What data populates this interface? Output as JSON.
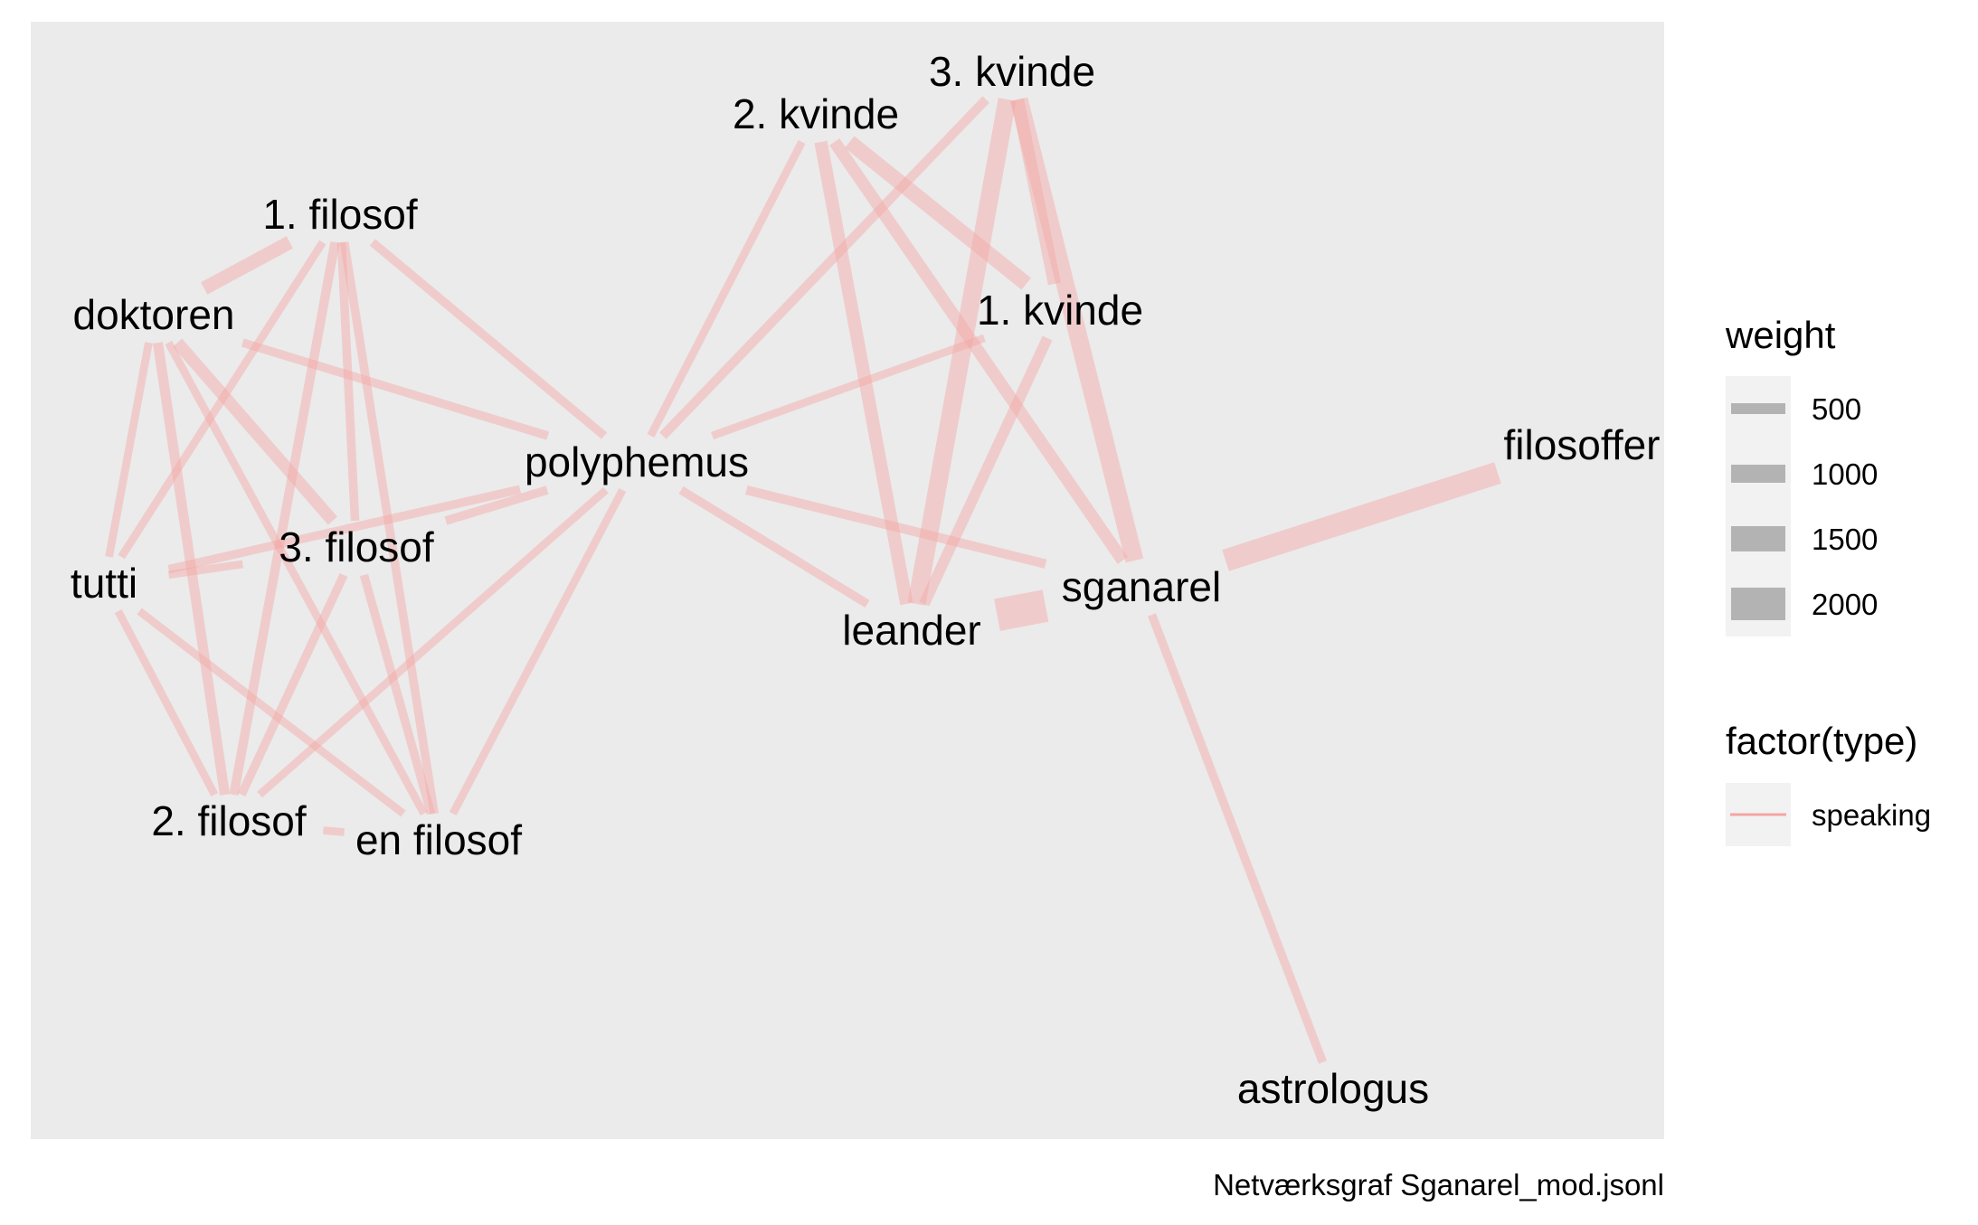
{
  "caption": "Netværksgraf Sganarel_mod.jsonl",
  "colors": {
    "panel": "#ebebeb",
    "edge": "#f4a6a3",
    "legend_key_bg": "#f2f2f2",
    "legend_key_bar": "#b3b3b3"
  },
  "legend": {
    "weight": {
      "title": "weight",
      "entries": [
        {
          "label": "500",
          "value": 500
        },
        {
          "label": "1000",
          "value": 1000
        },
        {
          "label": "1500",
          "value": 1500
        },
        {
          "label": "2000",
          "value": 2000
        }
      ]
    },
    "type": {
      "title": "factor(type)",
      "entries": [
        {
          "label": "speaking"
        }
      ]
    }
  },
  "graph": {
    "nodes": [
      {
        "id": "1. filosof",
        "label": "1. filosof"
      },
      {
        "id": "doktoren",
        "label": "doktoren"
      },
      {
        "id": "tutti",
        "label": "tutti"
      },
      {
        "id": "3. filosof",
        "label": "3. filosof"
      },
      {
        "id": "2. filosof",
        "label": "2. filosof"
      },
      {
        "id": "en filosof",
        "label": "en filosof"
      },
      {
        "id": "polyphemus",
        "label": "polyphemus"
      },
      {
        "id": "2. kvinde",
        "label": "2. kvinde"
      },
      {
        "id": "3. kvinde",
        "label": "3. kvinde"
      },
      {
        "id": "1. kvinde",
        "label": "1. kvinde"
      },
      {
        "id": "leander",
        "label": "leander"
      },
      {
        "id": "sganarel",
        "label": "sganarel"
      },
      {
        "id": "filosoffer",
        "label": "filosoffer"
      },
      {
        "id": "astrologus",
        "label": "astrologus"
      }
    ],
    "edges": [
      {
        "source": "doktoren",
        "target": "1. filosof",
        "weight": 700,
        "type": "speaking"
      },
      {
        "source": "doktoren",
        "target": "polyphemus",
        "weight": 350,
        "type": "speaking"
      },
      {
        "source": "doktoren",
        "target": "tutti",
        "weight": 300,
        "type": "speaking"
      },
      {
        "source": "doktoren",
        "target": "3. filosof",
        "weight": 600,
        "type": "speaking"
      },
      {
        "source": "doktoren",
        "target": "2. filosof",
        "weight": 450,
        "type": "speaking"
      },
      {
        "source": "doktoren",
        "target": "en filosof",
        "weight": 300,
        "type": "speaking"
      },
      {
        "source": "1. filosof",
        "target": "tutti",
        "weight": 300,
        "type": "speaking"
      },
      {
        "source": "1. filosof",
        "target": "3. filosof",
        "weight": 350,
        "type": "speaking"
      },
      {
        "source": "1. filosof",
        "target": "2. filosof",
        "weight": 400,
        "type": "speaking"
      },
      {
        "source": "1. filosof",
        "target": "en filosof",
        "weight": 350,
        "type": "speaking"
      },
      {
        "source": "1. filosof",
        "target": "polyphemus",
        "weight": 350,
        "type": "speaking"
      },
      {
        "source": "tutti",
        "target": "3. filosof",
        "weight": 300,
        "type": "speaking"
      },
      {
        "source": "tutti",
        "target": "polyphemus",
        "weight": 350,
        "type": "speaking"
      },
      {
        "source": "tutti",
        "target": "2. filosof",
        "weight": 300,
        "type": "speaking"
      },
      {
        "source": "tutti",
        "target": "en filosof",
        "weight": 300,
        "type": "speaking"
      },
      {
        "source": "3. filosof",
        "target": "2. filosof",
        "weight": 350,
        "type": "speaking"
      },
      {
        "source": "3. filosof",
        "target": "en filosof",
        "weight": 350,
        "type": "speaking"
      },
      {
        "source": "3. filosof",
        "target": "polyphemus",
        "weight": 350,
        "type": "speaking"
      },
      {
        "source": "2. filosof",
        "target": "en filosof",
        "weight": 300,
        "type": "speaking"
      },
      {
        "source": "2. filosof",
        "target": "polyphemus",
        "weight": 300,
        "type": "speaking"
      },
      {
        "source": "en filosof",
        "target": "polyphemus",
        "weight": 300,
        "type": "speaking"
      },
      {
        "source": "polyphemus",
        "target": "2. kvinde",
        "weight": 300,
        "type": "speaking"
      },
      {
        "source": "polyphemus",
        "target": "3. kvinde",
        "weight": 400,
        "type": "speaking"
      },
      {
        "source": "polyphemus",
        "target": "1. kvinde",
        "weight": 300,
        "type": "speaking"
      },
      {
        "source": "polyphemus",
        "target": "leander",
        "weight": 350,
        "type": "speaking"
      },
      {
        "source": "polyphemus",
        "target": "sganarel",
        "weight": 400,
        "type": "speaking"
      },
      {
        "source": "2. kvinde",
        "target": "1. kvinde",
        "weight": 800,
        "type": "speaking"
      },
      {
        "source": "2. kvinde",
        "target": "leander",
        "weight": 650,
        "type": "speaking"
      },
      {
        "source": "2. kvinde",
        "target": "sganarel",
        "weight": 600,
        "type": "speaking"
      },
      {
        "source": "3. kvinde",
        "target": "1. kvinde",
        "weight": 650,
        "type": "speaking"
      },
      {
        "source": "3. kvinde",
        "target": "leander",
        "weight": 1000,
        "type": "speaking"
      },
      {
        "source": "3. kvinde",
        "target": "sganarel",
        "weight": 1000,
        "type": "speaking"
      },
      {
        "source": "1. kvinde",
        "target": "leander",
        "weight": 500,
        "type": "speaking"
      },
      {
        "source": "leander",
        "target": "sganarel",
        "weight": 2000,
        "type": "speaking"
      },
      {
        "source": "sganarel",
        "target": "filosoffer",
        "weight": 1300,
        "type": "speaking"
      },
      {
        "source": "sganarel",
        "target": "astrologus",
        "weight": 350,
        "type": "speaking"
      }
    ]
  }
}
